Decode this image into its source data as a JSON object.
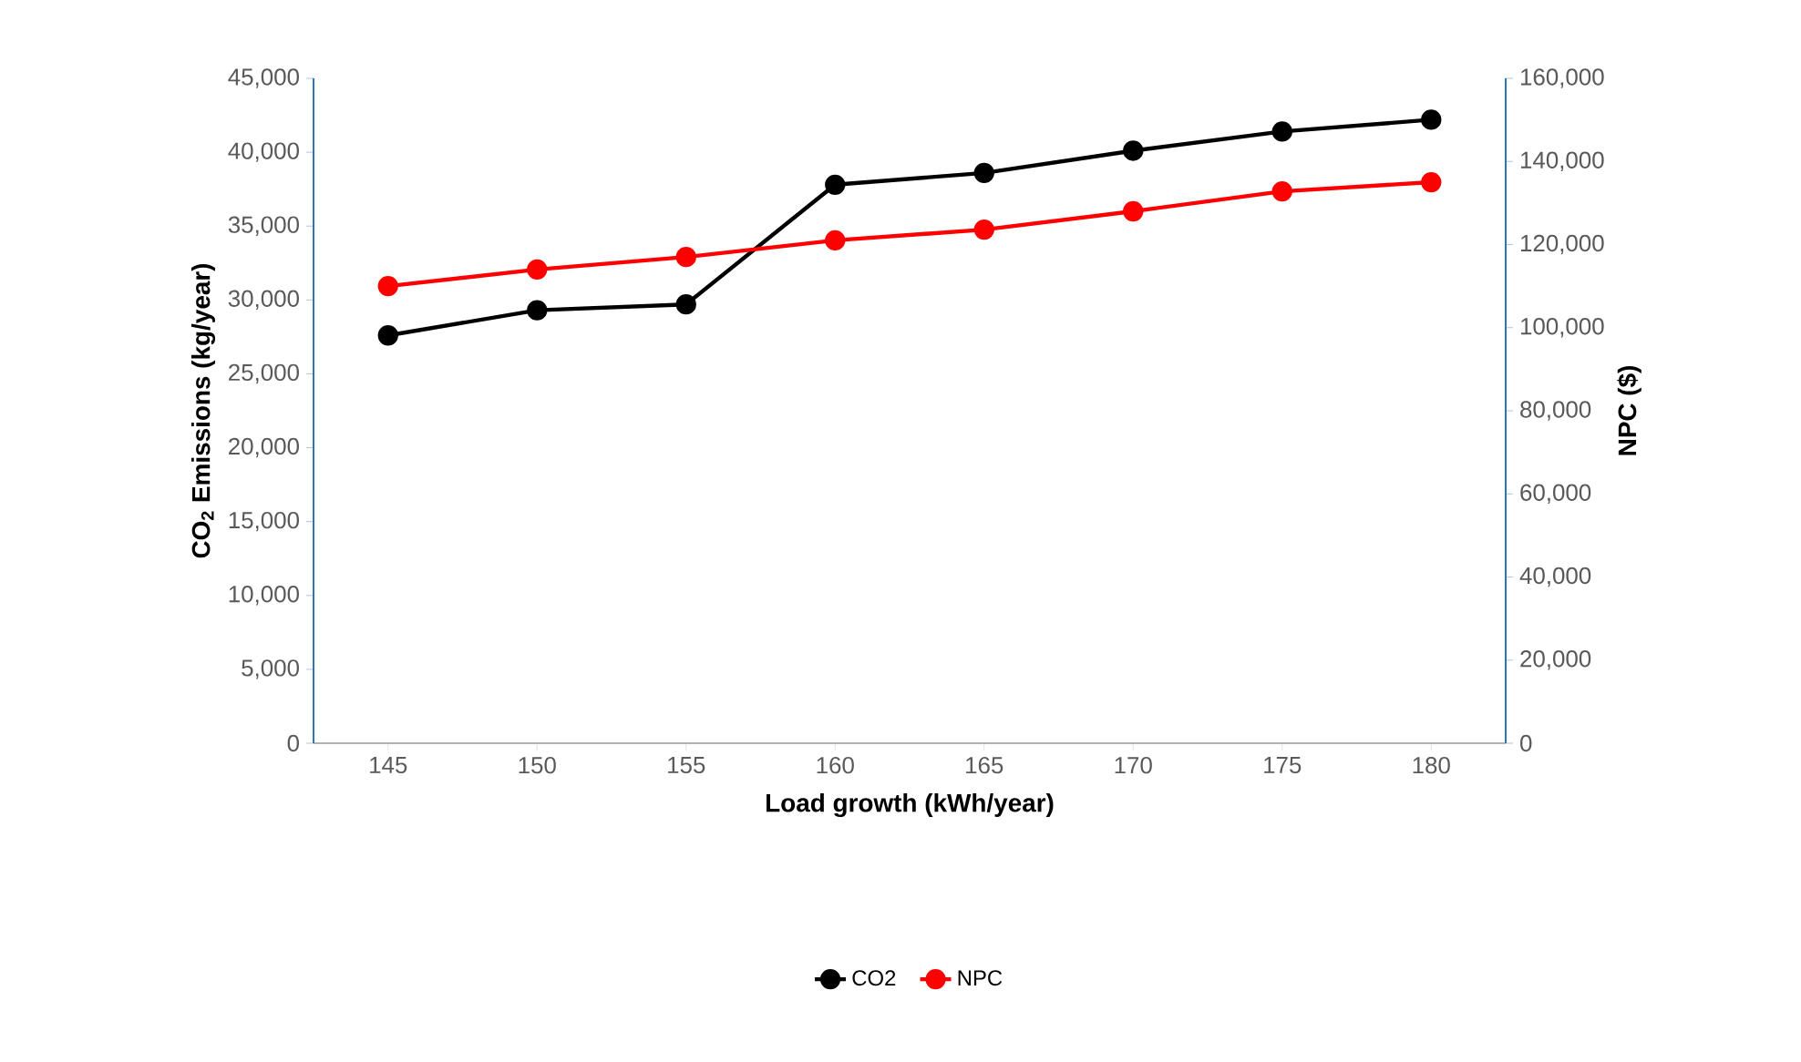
{
  "chart_data": {
    "type": "line",
    "xlabel": "Load growth (kWh/year)",
    "ylabel": "CO$_{2}$ Emissions (kg/year)",
    "y2label": "NPC ($)",
    "categories": [
      "145",
      "150",
      "155",
      "160",
      "165",
      "170",
      "175",
      "180"
    ],
    "series": [
      {
        "name": "CO2",
        "color": "#000000",
        "values": [
          27600,
          29300,
          29700,
          37800,
          38600,
          40100,
          41400,
          42200
        ]
      },
      {
        "name": "NPC",
        "color": "#ff0000",
        "axis": "y2",
        "values": [
          110000,
          114000,
          117000,
          121000,
          123600,
          128000,
          132800,
          135000
        ]
      }
    ],
    "ylim": [
      0,
      45000
    ],
    "yticks": [
      {
        "value": 0,
        "label": "0"
      },
      {
        "value": 5000,
        "label": "5,000"
      },
      {
        "value": 10000,
        "label": "10,000"
      },
      {
        "value": 15000,
        "label": "15,000"
      },
      {
        "value": 20000,
        "label": "20,000"
      },
      {
        "value": 25000,
        "label": "25,000"
      },
      {
        "value": 30000,
        "label": "30,000"
      },
      {
        "value": 35000,
        "label": "35,000"
      },
      {
        "value": 40000,
        "label": "40,000"
      },
      {
        "value": 45000,
        "label": "45,000"
      }
    ],
    "y2lim": [
      0,
      160000
    ],
    "y2ticks": [
      {
        "value": 0,
        "label": "0"
      },
      {
        "value": 20000,
        "label": "20,000"
      },
      {
        "value": 40000,
        "label": "40,000"
      },
      {
        "value": 60000,
        "label": "60,000"
      },
      {
        "value": 80000,
        "label": "80,000"
      },
      {
        "value": 100000,
        "label": "100,000"
      },
      {
        "value": 120000,
        "label": "120,000"
      },
      {
        "value": 140000,
        "label": "140,000"
      },
      {
        "value": 160000,
        "label": "160,000"
      }
    ],
    "grid": false,
    "legend": "bottom",
    "marker": "circle",
    "line_style": "solid"
  }
}
